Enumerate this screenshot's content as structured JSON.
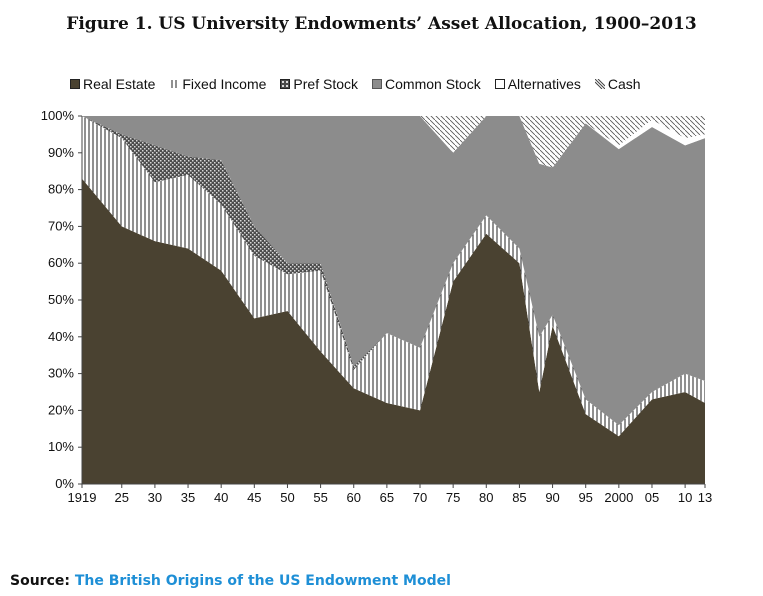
{
  "chart_data": {
    "type": "area",
    "stacked": true,
    "title": "Figure 1. US University Endowments’ Asset Allocation, 1900–2013",
    "xlabel": "",
    "ylabel": "",
    "xlim": [
      1919,
      2013
    ],
    "ylim": [
      0,
      100
    ],
    "y_ticks": [
      0,
      10,
      20,
      30,
      40,
      50,
      60,
      70,
      80,
      90,
      100
    ],
    "y_tick_labels": [
      "0%",
      "10%",
      "20%",
      "30%",
      "40%",
      "50%",
      "60%",
      "70%",
      "80%",
      "90%",
      "100%"
    ],
    "x_ticks": [
      1919,
      1925,
      1930,
      1935,
      1940,
      1945,
      1950,
      1955,
      1960,
      1965,
      1970,
      1975,
      1980,
      1985,
      1990,
      1995,
      2000,
      2005,
      2010,
      2013
    ],
    "x_tick_labels": [
      "1919",
      "25",
      "30",
      "35",
      "40",
      "45",
      "50",
      "55",
      "60",
      "65",
      "70",
      "75",
      "80",
      "85",
      "90",
      "95",
      "2000",
      "05",
      "10",
      "13"
    ],
    "legend_position": "top",
    "grid": false,
    "x": [
      1919,
      1925,
      1930,
      1935,
      1940,
      1945,
      1950,
      1955,
      1960,
      1965,
      1970,
      1975,
      1980,
      1985,
      1988,
      1990,
      1995,
      2000,
      2005,
      2010,
      2013
    ],
    "series": [
      {
        "name": "Real Estate",
        "color": "#4a4231",
        "values": [
          83,
          70,
          66,
          64,
          58,
          45,
          47,
          36,
          26,
          22,
          20,
          55,
          68,
          60,
          25,
          43,
          19,
          13,
          23,
          25,
          22
        ]
      },
      {
        "name": "Fixed Income",
        "color": "#ffffff",
        "values": [
          17,
          24,
          16,
          20,
          18,
          17,
          10,
          22,
          5,
          19,
          17,
          5,
          5,
          4,
          15,
          3,
          4,
          3,
          2,
          5,
          6
        ]
      },
      {
        "name": "Pref Stock",
        "color": "#5a5a5a",
        "values": [
          0,
          1,
          10,
          5,
          12,
          8,
          3,
          2,
          1,
          0,
          0,
          0,
          0,
          0,
          0,
          0,
          0,
          0,
          0,
          0,
          0
        ]
      },
      {
        "name": "Common Stock",
        "color": "#8c8c8c",
        "values": [
          0,
          5,
          8,
          11,
          12,
          30,
          40,
          40,
          68,
          59,
          63,
          30,
          27,
          36,
          47,
          40,
          75,
          75,
          72,
          62,
          66
        ]
      },
      {
        "name": "Alternatives",
        "color": "#ffffff",
        "values": [
          0,
          0,
          0,
          0,
          0,
          0,
          0,
          0,
          0,
          0,
          0,
          0,
          0,
          0,
          0,
          0,
          0,
          1,
          2,
          2,
          1
        ]
      },
      {
        "name": "Cash",
        "color": "#e6e6e6",
        "values": [
          0,
          0,
          0,
          0,
          0,
          0,
          0,
          0,
          0,
          0,
          0,
          10,
          0,
          0,
          13,
          14,
          2,
          8,
          1,
          6,
          5
        ]
      }
    ]
  },
  "source": {
    "label": "Source:",
    "link_text": "The British Origins of the US Endowment Model"
  }
}
